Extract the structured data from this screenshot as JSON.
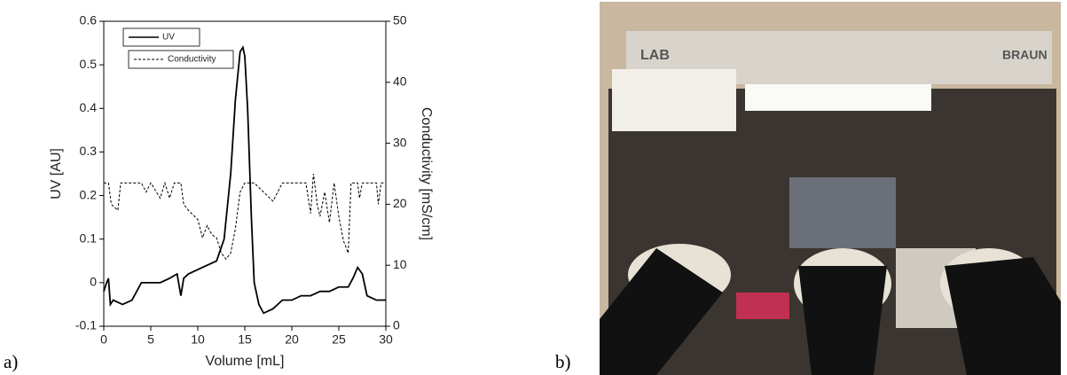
{
  "chart_data": {
    "type": "line",
    "xlabel": "Volume [mL]",
    "ylabel": "UV [AU]",
    "y2label": "Conductivity [mS/cm]",
    "xlim": [
      0,
      30
    ],
    "xticks": [
      0,
      5,
      10,
      15,
      20,
      25,
      30
    ],
    "ylim": [
      -0.1,
      0.6
    ],
    "yticks": [
      -0.1,
      0,
      0.1,
      0.2,
      0.3,
      0.4,
      0.5,
      0.6
    ],
    "y2lim": [
      0,
      50
    ],
    "y2ticks": [
      0,
      10,
      20,
      30,
      40,
      50
    ],
    "legend": "upper left",
    "grid": false,
    "series": [
      {
        "name": "UV",
        "color": "#000000",
        "linestyle": "solid",
        "x": [
          0,
          0.3,
          0.5,
          0.7,
          1,
          2,
          3,
          4,
          5,
          6,
          7,
          7.8,
          8.2,
          8.5,
          9,
          10,
          11,
          12,
          12.8,
          13.5,
          14,
          14.5,
          14.8,
          15,
          15.3,
          15.7,
          16,
          16.5,
          17,
          18,
          19,
          20,
          21,
          22,
          23,
          24,
          25,
          26,
          26.5,
          27,
          27.5,
          28,
          29,
          30
        ],
        "values": [
          -0.02,
          0.0,
          0.01,
          -0.05,
          -0.04,
          -0.05,
          -0.04,
          0.0,
          0.0,
          0.0,
          0.01,
          0.02,
          -0.03,
          0.01,
          0.02,
          0.03,
          0.04,
          0.05,
          0.1,
          0.25,
          0.42,
          0.53,
          0.54,
          0.52,
          0.4,
          0.15,
          0.0,
          -0.05,
          -0.07,
          -0.06,
          -0.04,
          -0.04,
          -0.03,
          -0.03,
          -0.02,
          -0.02,
          -0.01,
          -0.01,
          0.01,
          0.035,
          0.02,
          -0.03,
          -0.04,
          -0.04
        ]
      },
      {
        "name": "Conductivity",
        "color": "#000000",
        "linestyle": "dashed",
        "axis": "y2",
        "x": [
          0,
          0.5,
          0.8,
          1.5,
          1.8,
          4,
          4.5,
          5,
          6,
          6.5,
          7,
          7.5,
          8.2,
          8.5,
          9,
          10,
          10.5,
          11,
          11.5,
          12,
          12.5,
          13,
          13.5,
          14,
          14.5,
          15,
          16,
          17,
          18,
          19,
          21.5,
          22,
          22.3,
          22.7,
          23,
          23.5,
          24,
          24.5,
          25,
          25.5,
          26,
          26.3,
          27,
          27.2,
          27.5,
          29,
          29.2,
          29.5,
          30
        ],
        "values": [
          23.5,
          23.5,
          20,
          19,
          23.5,
          23.5,
          22,
          23.5,
          21,
          23.5,
          21,
          23.5,
          23.5,
          20,
          19,
          17.5,
          14.5,
          16.5,
          15,
          14.5,
          12,
          11,
          12,
          16,
          22,
          23.5,
          23.5,
          22,
          20.5,
          23.5,
          23.5,
          18.5,
          25,
          20,
          18,
          22,
          17,
          23.5,
          18,
          14,
          12,
          23.5,
          23.5,
          21,
          23.5,
          23.5,
          20,
          23.5,
          23.5
        ]
      }
    ]
  },
  "panel_labels": [
    "a)",
    "b)"
  ],
  "photo_labels": [
    "LAB",
    "BRAUN"
  ]
}
